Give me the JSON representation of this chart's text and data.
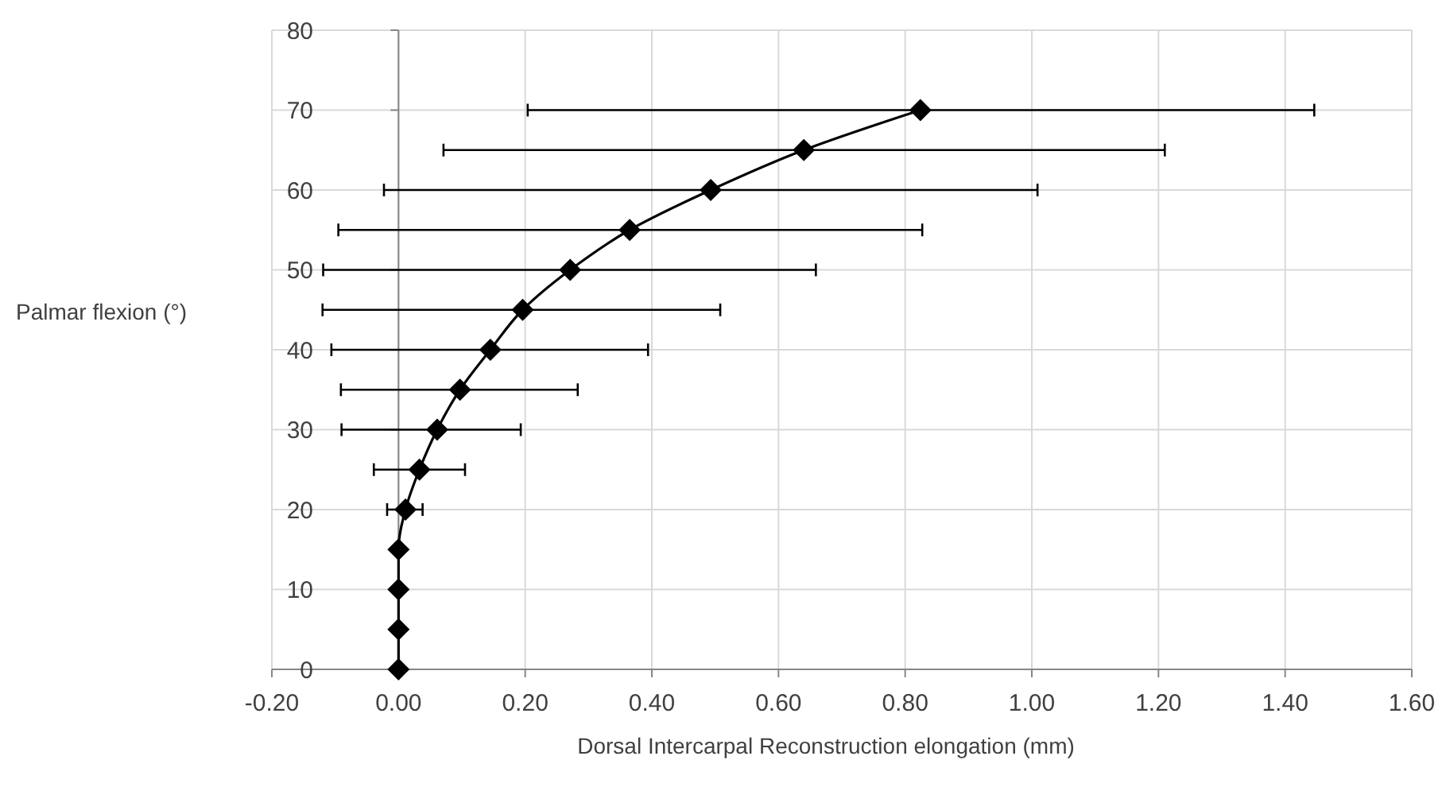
{
  "chart_data": {
    "type": "line",
    "xlabel": "Dorsal Intercarpal Reconstruction elongation (mm)",
    "ylabel": "Palmar flexion (°)",
    "x": [
      0,
      0,
      0,
      0,
      0.011,
      0.033,
      0.061,
      0.097,
      0.145,
      0.196,
      0.271,
      0.365,
      0.493,
      0.64,
      0.824
    ],
    "values": [
      0,
      5,
      10,
      15,
      20,
      25,
      30,
      35,
      40,
      45,
      50,
      55,
      60,
      65,
      70
    ],
    "xerrors": [
      null,
      null,
      null,
      null,
      [
        -0.018,
        0.038
      ],
      [
        -0.039,
        0.105
      ],
      [
        -0.09,
        0.193
      ],
      [
        -0.091,
        0.283
      ],
      [
        -0.106,
        0.394
      ],
      [
        -0.12,
        0.508
      ],
      [
        -0.119,
        0.659
      ],
      [
        -0.095,
        0.827
      ],
      [
        -0.023,
        1.009
      ],
      [
        0.071,
        1.21
      ],
      [
        0.204,
        1.446
      ]
    ],
    "color": "#000000",
    "marker": "diamond",
    "line_style": "solid",
    "xlim": [
      -0.2,
      1.6
    ],
    "xticks": [
      {
        "value": -0.2,
        "label": "-0.20"
      },
      {
        "value": 0,
        "label": "0.00"
      },
      {
        "value": 0.2,
        "label": "0.20"
      },
      {
        "value": 0.4,
        "label": "0.40"
      },
      {
        "value": 0.6,
        "label": "0.60"
      },
      {
        "value": 0.8,
        "label": "0.80"
      },
      {
        "value": 1,
        "label": "1.00"
      },
      {
        "value": 1.2,
        "label": "1.20"
      },
      {
        "value": 1.4,
        "label": "1.40"
      },
      {
        "value": 1.6,
        "label": "1.60"
      }
    ],
    "ylim": [
      0,
      80
    ],
    "yticks": [
      0,
      10,
      20,
      30,
      40,
      50,
      60,
      70,
      80
    ],
    "grid": true
  }
}
